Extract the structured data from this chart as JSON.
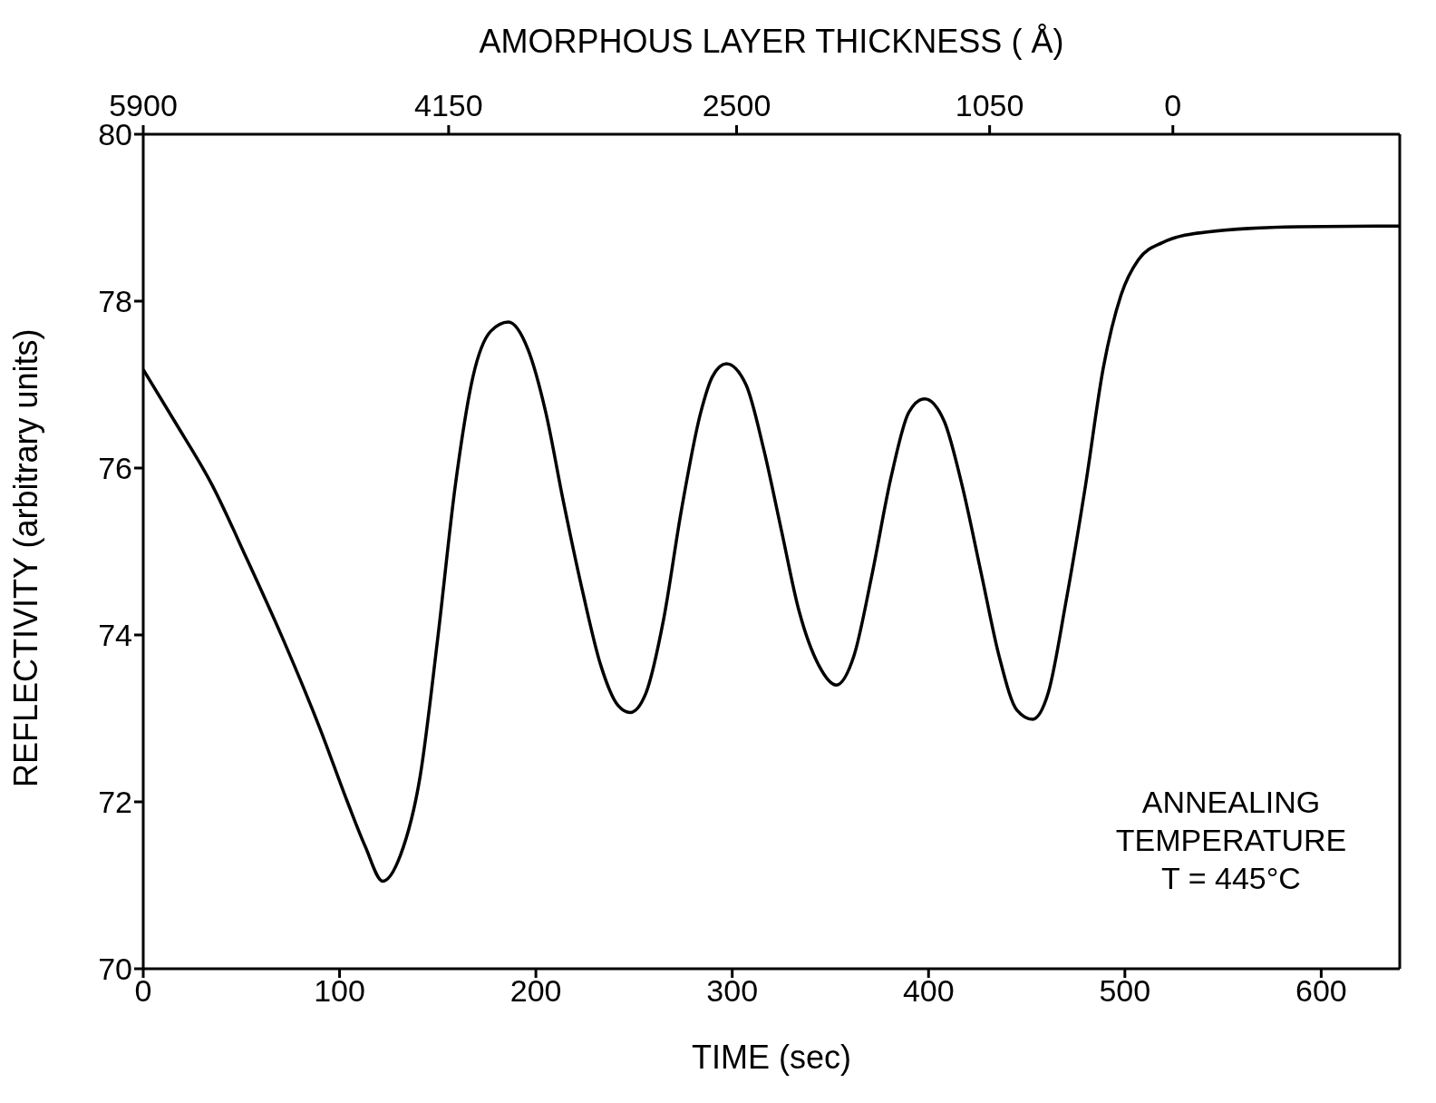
{
  "chart_data": {
    "type": "line",
    "xlabel": "TIME (sec)",
    "ylabel": "REFLECTIVITY (arbitrary units)",
    "x2label": "AMORPHOUS LAYER THICKNESS ( Å)",
    "x": [
      0,
      16,
      35,
      53,
      71,
      90,
      104,
      113,
      122,
      131,
      141,
      150,
      159,
      168,
      177,
      186,
      196,
      205,
      214,
      224,
      233,
      242,
      248,
      256,
      265,
      274,
      284,
      290,
      297,
      307,
      316,
      325,
      334,
      344,
      353,
      362,
      371,
      381,
      390,
      398,
      408,
      417,
      427,
      436,
      445,
      453,
      461,
      470,
      480,
      489,
      498,
      507,
      519,
      542,
      588,
      640
    ],
    "series": [
      {
        "color": "#000000",
        "values": [
          77.18,
          76.56,
          75.8,
          74.9,
          73.96,
          72.88,
          72.0,
          71.47,
          71.05,
          71.36,
          72.3,
          73.96,
          75.8,
          77.1,
          77.64,
          77.75,
          77.42,
          76.67,
          75.6,
          74.5,
          73.64,
          73.15,
          73.07,
          73.3,
          74.18,
          75.48,
          76.67,
          77.1,
          77.25,
          77.0,
          76.23,
          75.26,
          74.29,
          73.64,
          73.4,
          73.75,
          74.7,
          75.9,
          76.67,
          76.83,
          76.56,
          75.8,
          74.72,
          73.74,
          73.1,
          72.99,
          73.31,
          74.4,
          75.8,
          77.2,
          78.07,
          78.5,
          78.7,
          78.83,
          78.89,
          78.9
        ]
      }
    ],
    "xlim": [
      0,
      640
    ],
    "xticks": [
      0,
      100,
      200,
      300,
      400,
      500,
      600
    ],
    "x2lim": [
      5900,
      -1300
    ],
    "x2ticks": [
      5900,
      4150,
      2500,
      1050,
      0
    ],
    "ylim": [
      70,
      80
    ],
    "yticks": [
      70,
      72,
      74,
      76,
      78,
      80
    ],
    "grid": false,
    "legend": false,
    "marker": "none",
    "line_style": "solid",
    "annotations": [
      "ANNEALING\nTEMPERATURE\nT = 445°C"
    ]
  }
}
